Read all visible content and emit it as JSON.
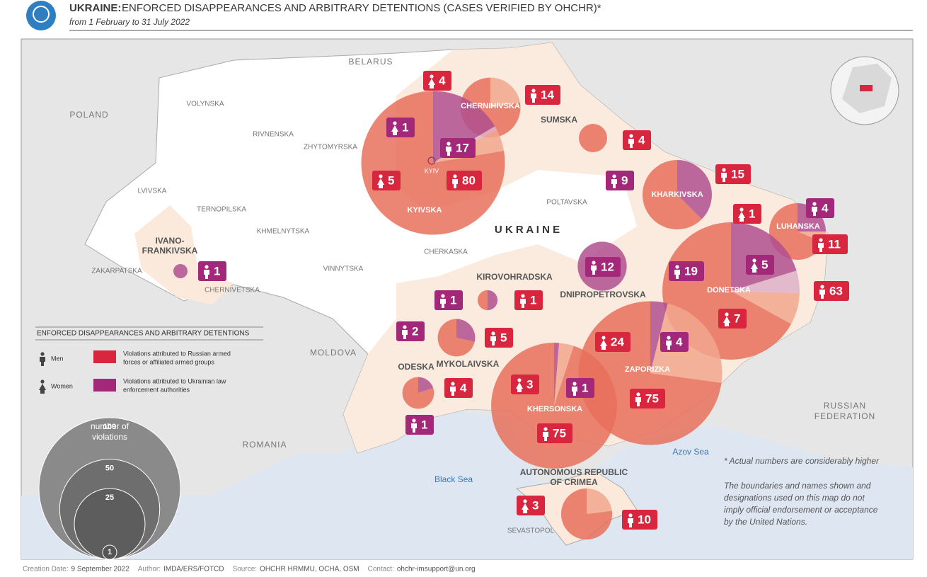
{
  "header": {
    "title_bold": "UKRAINE:",
    "title": "ENFORCED DISAPPEARANCES AND ARBITRARY DETENTIONS (CASES VERIFIED BY OHCHR)*",
    "subtitle": "from 1 February to 31 July 2022"
  },
  "map_labels": {
    "countries": [
      "BELARUS",
      "POLAND",
      "MOLDOVA",
      "ROMANIA",
      [
        "RUSSIAN",
        "FEDERATION"
      ]
    ],
    "seas": [
      "Black Sea",
      "Azov Sea"
    ],
    "country": "U K R A I N E",
    "oblasts": [
      "VOLYNSKA",
      "RIVNENSKA",
      "ZHYTOMYRSKA",
      "LVIVSKA",
      "TERNOPILSKA",
      "KHMELNYTSKA",
      "ZAKARPATSKA",
      "CHERNIVETSKA",
      "VINNYTSKA",
      "CHERKASKA",
      "POLTAVSKA"
    ],
    "cities": [
      "KYIV",
      "SEVASTOPOL"
    ]
  },
  "regions": [
    {
      "name": "CHERNIHIVSKA",
      "russian": {
        "men": 14,
        "women": 4
      }
    },
    {
      "name": "KYIVSKA",
      "russian": {
        "men": 80,
        "women": 5
      },
      "ukrainian": {
        "men": 17,
        "women": 1
      }
    },
    {
      "name": "SUMSKA",
      "russian": {
        "men": 4
      }
    },
    {
      "name": "KHARKIVSKA",
      "russian": {
        "men": 15
      },
      "ukrainian": {
        "men": 9
      }
    },
    {
      "name": "LUHANSKA",
      "russian": {
        "men": 11,
        "women": 1
      },
      "ukrainian": {
        "men": 4
      }
    },
    {
      "name": "DONETSKA",
      "russian": {
        "men": 63,
        "women": 7
      },
      "ukrainian": {
        "men": 19,
        "women": 5
      }
    },
    {
      "name": "DNIPROPETROVSKA",
      "ukrainian": {
        "men": 12
      }
    },
    {
      "name": "KIROVOHRADSKA",
      "russian": {
        "men": 1
      },
      "ukrainian": {
        "men": 1
      }
    },
    {
      "name": "MYKOLAIVSKA",
      "russian": {
        "men": 5
      },
      "ukrainian": {
        "men": 2
      }
    },
    {
      "name": "ODESKA",
      "russian": {
        "men": 4
      },
      "ukrainian": {
        "men": 1
      }
    },
    {
      "name": "ZAPORIZKA",
      "russian": {
        "men": 75,
        "women": 24
      },
      "ukrainian": {
        "men": 4
      }
    },
    {
      "name": "KHERSONSKA",
      "russian": {
        "men": 75,
        "women": 3
      },
      "ukrainian": {
        "men": 1
      }
    },
    {
      "name": [
        "AUTONOMOUS REPUBLIC",
        "OF CRIMEA"
      ],
      "russian": {
        "men": 10,
        "women": 3
      }
    },
    {
      "name": [
        "IVANO-",
        "FRANKIVSKA"
      ],
      "ukrainian": {
        "men": 1
      }
    }
  ],
  "legend": {
    "title": "ENFORCED DISAPPEARANCES AND ARBITRARY DETENTIONS",
    "men": "Men",
    "women": "Women",
    "russian": {
      "label": [
        "Violations attributed to Russian armed",
        "forces or affiliated armed groups"
      ],
      "color": "#d7263d",
      "pie_men": "#e8705c",
      "pie_women": "#f2a78e"
    },
    "ukrainian": {
      "label": [
        "Violations attributed to Ukrainian law",
        "enforcement authorities"
      ],
      "color": "#a3287a",
      "pie_men": "#b0508f",
      "pie_women": "#ddb1c9"
    },
    "size_label": [
      "number of",
      "violations"
    ],
    "sizes": [
      100,
      50,
      25,
      1
    ]
  },
  "notes": {
    "asterisk": "* Actual numbers are considerably higher",
    "disclaimer": [
      "The boundaries and names shown and",
      "designations used on this map do not",
      "imply official endorsement or acceptance",
      "by the United Nations."
    ]
  },
  "footer": [
    {
      "label": "Creation Date:",
      "value": "9 September 2022"
    },
    {
      "label": "Author:",
      "value": "IMDA/ERS/FOTCD"
    },
    {
      "label": "Source:",
      "value": "OHCHR HRMMU, OCHA, OSM"
    },
    {
      "label": "Contact:",
      "value": "ohchr-imsupport@un.org"
    }
  ]
}
